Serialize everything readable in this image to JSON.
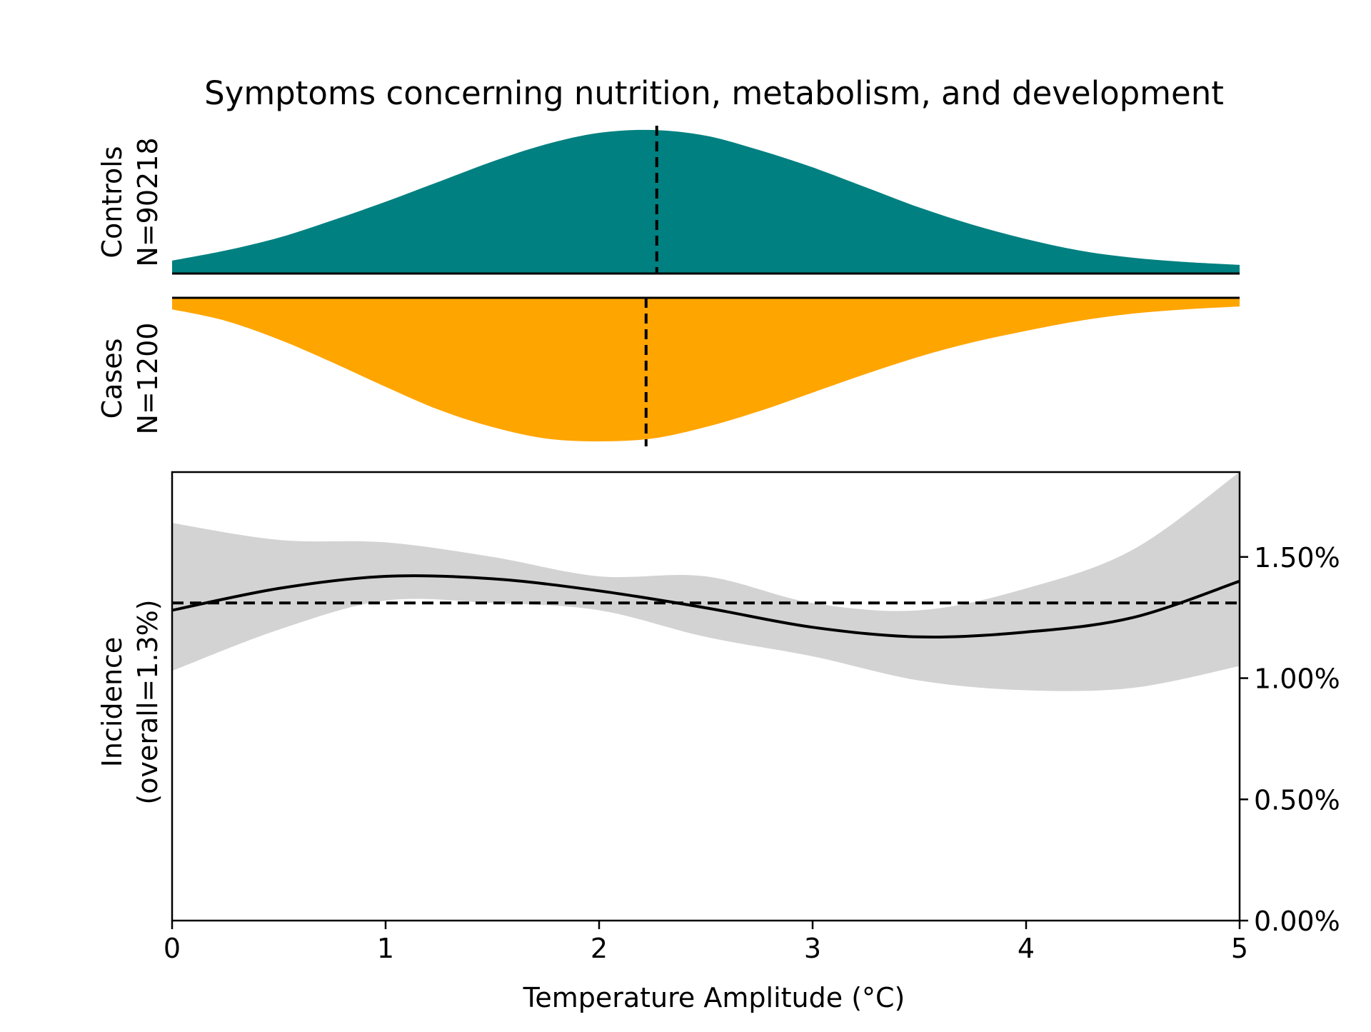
{
  "chart_data": {
    "title": "Symptoms concerning nutrition, metabolism, and development",
    "panels": [
      {
        "type": "area",
        "label_line1": "Controls",
        "label_line2": "N=90218",
        "color": "#008080",
        "mean": 2.27,
        "x": [
          0,
          0.25,
          0.5,
          0.75,
          1.0,
          1.25,
          1.5,
          1.75,
          2.0,
          2.25,
          2.5,
          2.75,
          3.0,
          3.25,
          3.5,
          3.75,
          4.0,
          4.25,
          4.5,
          4.75,
          5.0
        ],
        "density": [
          0.09,
          0.16,
          0.25,
          0.37,
          0.5,
          0.64,
          0.78,
          0.9,
          0.98,
          1.0,
          0.96,
          0.86,
          0.74,
          0.6,
          0.46,
          0.34,
          0.24,
          0.16,
          0.11,
          0.08,
          0.06
        ]
      },
      {
        "type": "area",
        "label_line1": "Cases",
        "label_line2": "N=1200",
        "color": "#FFA500",
        "mean": 2.22,
        "x": [
          0,
          0.25,
          0.5,
          0.75,
          1.0,
          1.25,
          1.5,
          1.75,
          2.0,
          2.25,
          2.5,
          2.75,
          3.0,
          3.25,
          3.5,
          3.75,
          4.0,
          4.25,
          4.5,
          4.75,
          5.0
        ],
        "density": [
          0.08,
          0.16,
          0.29,
          0.45,
          0.62,
          0.78,
          0.9,
          0.98,
          1.0,
          0.98,
          0.9,
          0.79,
          0.66,
          0.53,
          0.41,
          0.31,
          0.23,
          0.16,
          0.11,
          0.08,
          0.06
        ]
      },
      {
        "type": "line",
        "ylabel_line1": "Incidence",
        "ylabel_line2": "(overall=1.3%)",
        "xlabel": "Temperature Amplitude (°C)",
        "xlim": [
          0,
          5
        ],
        "ylim": [
          0,
          1.85
        ],
        "xticks": [
          "0",
          "1",
          "2",
          "3",
          "4",
          "5"
        ],
        "yticks": [
          {
            "value": 0,
            "label": "0.00%"
          },
          {
            "value": 0.5,
            "label": "0.50%"
          },
          {
            "value": 1.0,
            "label": "1.00%"
          },
          {
            "value": 1.5,
            "label": "1.50%"
          }
        ],
        "overall": 1.31,
        "x": [
          0,
          0.5,
          1.0,
          1.5,
          2.0,
          2.5,
          3.0,
          3.5,
          4.0,
          4.5,
          5.0
        ],
        "incidence": [
          1.28,
          1.37,
          1.42,
          1.41,
          1.36,
          1.29,
          1.21,
          1.17,
          1.19,
          1.25,
          1.4
        ],
        "ci_lower": [
          1.03,
          1.2,
          1.32,
          1.31,
          1.28,
          1.17,
          1.09,
          0.99,
          0.95,
          0.96,
          1.05
        ],
        "ci_upper": [
          1.64,
          1.57,
          1.56,
          1.5,
          1.42,
          1.42,
          1.31,
          1.28,
          1.37,
          1.53,
          1.85
        ]
      }
    ]
  }
}
